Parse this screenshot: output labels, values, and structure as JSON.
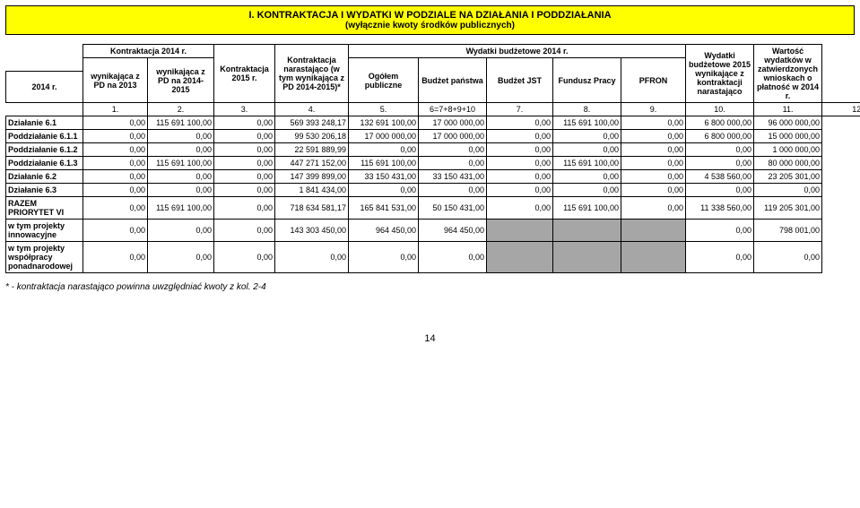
{
  "section_title_line1": "I. KONTRAKTACJA I WYDATKI W PODZIALE NA DZIAŁANIA I PODDZIAŁANIA",
  "section_title_line2": "(wyłącznie kwoty środków publicznych)",
  "header": {
    "col0_row": "2014 r.",
    "kontraktacja2014": "Kontraktacja 2014 r.",
    "col1": "wynikająca z PD na 2013",
    "col2": "wynikająca z PD na 2014-2015",
    "col3": "Kontraktacja 2015 r.",
    "col4": "Kontraktacja narastająco (w tym wynikająca z PD 2014-2015)*",
    "wydatki2014": "Wydatki budżetowe 2014 r.",
    "col5": "Ogółem publiczne",
    "col6": "Budżet państwa",
    "col7": "Budżet JST",
    "col8": "Fundusz Pracy",
    "col9": "PFRON",
    "col10": "Wydatki budżetowe 2015 wynikające z kontraktacji narastająco",
    "col11": "Wartość wydatków w zatwierdzonych wnioskach o płatność w 2014 r.",
    "idx": [
      "1.",
      "2.",
      "3.",
      "4.",
      "5.",
      "6=7+8+9+10",
      "7.",
      "8.",
      "9.",
      "10.",
      "11.",
      "12."
    ]
  },
  "rows": [
    {
      "label": "Działanie 6.1",
      "c": [
        "0,00",
        "115 691 100,00",
        "0,00",
        "569 393 248,17",
        "132 691 100,00",
        "17 000 000,00",
        "0,00",
        "115 691 100,00",
        "0,00",
        "6 800 000,00",
        "96 000 000,00"
      ]
    },
    {
      "label": "Poddziałanie 6.1.1",
      "c": [
        "0,00",
        "0,00",
        "0,00",
        "99 530 206,18",
        "17 000 000,00",
        "17 000 000,00",
        "0,00",
        "0,00",
        "0,00",
        "6 800 000,00",
        "15 000 000,00"
      ]
    },
    {
      "label": "Poddziałanie 6.1.2",
      "c": [
        "0,00",
        "0,00",
        "0,00",
        "22 591 889,99",
        "0,00",
        "0,00",
        "0,00",
        "0,00",
        "0,00",
        "0,00",
        "1 000 000,00"
      ]
    },
    {
      "label": "Poddziałanie 6.1.3",
      "c": [
        "0,00",
        "115 691 100,00",
        "0,00",
        "447 271 152,00",
        "115 691 100,00",
        "0,00",
        "0,00",
        "115 691 100,00",
        "0,00",
        "0,00",
        "80 000 000,00"
      ]
    },
    {
      "label": "Działanie 6.2",
      "c": [
        "0,00",
        "0,00",
        "0,00",
        "147 399 899,00",
        "33 150 431,00",
        "33 150 431,00",
        "0,00",
        "0,00",
        "0,00",
        "4 538 560,00",
        "23 205 301,00"
      ]
    },
    {
      "label": "Działanie 6.3",
      "c": [
        "0,00",
        "0,00",
        "0,00",
        "1 841 434,00",
        "0,00",
        "0,00",
        "0,00",
        "0,00",
        "0,00",
        "0,00",
        "0,00"
      ]
    },
    {
      "label": "RAZEM PRIORYTET VI",
      "c": [
        "0,00",
        "115 691 100,00",
        "0,00",
        "718 634 581,17",
        "165 841 531,00",
        "50 150 431,00",
        "0,00",
        "115 691 100,00",
        "0,00",
        "11 338 560,00",
        "119 205 301,00"
      ]
    },
    {
      "label": "w tym projekty innowacyjne",
      "c": [
        "0,00",
        "0,00",
        "0,00",
        "143 303 450,00",
        "964 450,00",
        "964 450,00",
        "GRAY",
        "GRAY",
        "GRAY",
        "0,00",
        "798 001,00"
      ]
    },
    {
      "label": "w tym projekty współpracy ponadnarodowej",
      "c": [
        "0,00",
        "0,00",
        "0,00",
        "0,00",
        "0,00",
        "0,00",
        "GRAY",
        "GRAY",
        "GRAY",
        "0,00",
        "0,00"
      ]
    }
  ],
  "footnote": "* - kontraktacja narastająco powinna uwzględniać kwoty z kol. 2-4",
  "pagenum": "14"
}
